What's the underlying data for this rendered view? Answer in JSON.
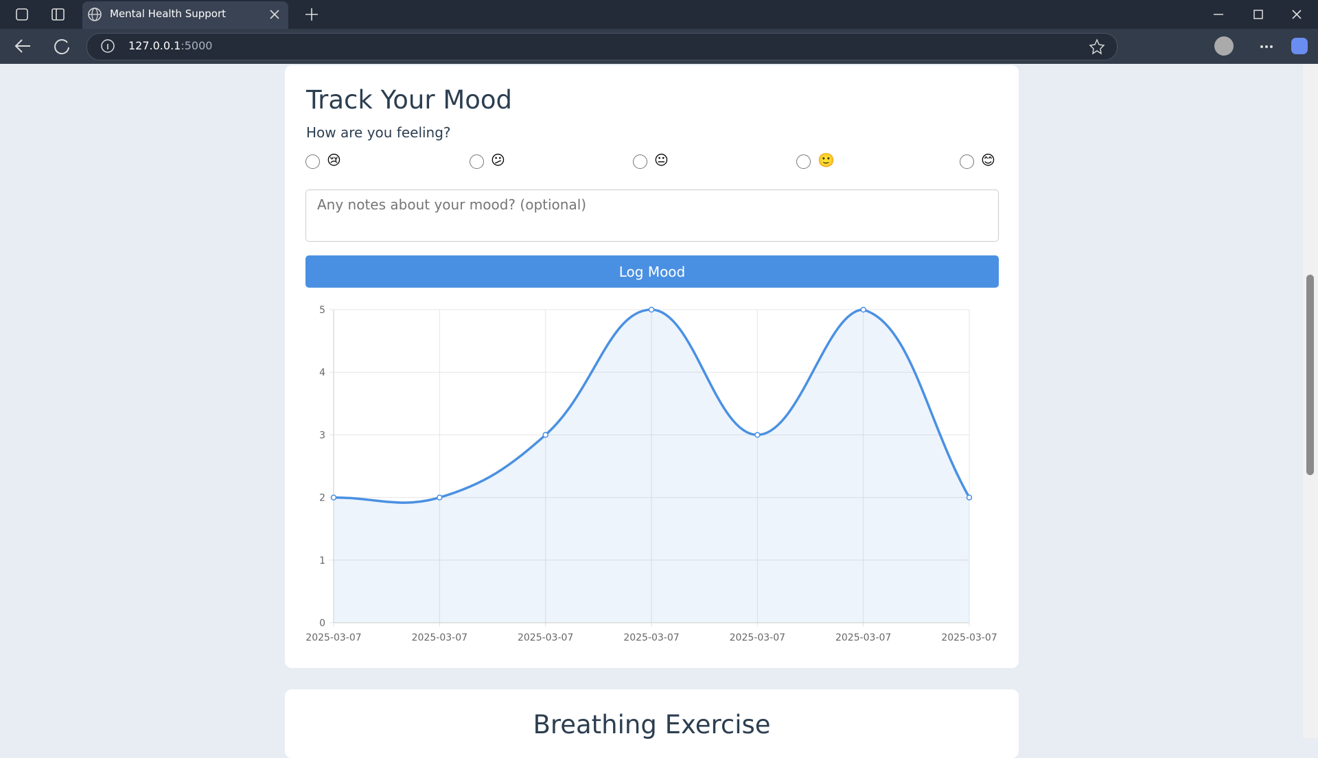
{
  "browser": {
    "tab_title": "Mental Health Support",
    "url_host": "127.0.0.1",
    "url_port": ":5000"
  },
  "mood_card": {
    "title": "Track Your Mood",
    "question": "How are you feeling?",
    "options": [
      "😢",
      "😕",
      "😐",
      "🙂",
      "😊"
    ],
    "notes_placeholder": "Any notes about your mood? (optional)",
    "button": "Log Mood"
  },
  "chart_data": {
    "type": "line",
    "categories": [
      "2025-03-07",
      "2025-03-07",
      "2025-03-07",
      "2025-03-07",
      "2025-03-07",
      "2025-03-07",
      "2025-03-07"
    ],
    "values": [
      2,
      2,
      3,
      5,
      3,
      5,
      2
    ],
    "color": "#4a90e2",
    "ylim": [
      0,
      5
    ],
    "yticks": [
      0,
      1,
      2,
      3,
      4,
      5
    ],
    "grid": true
  },
  "breathing_card": {
    "title": "Breathing Exercise"
  }
}
